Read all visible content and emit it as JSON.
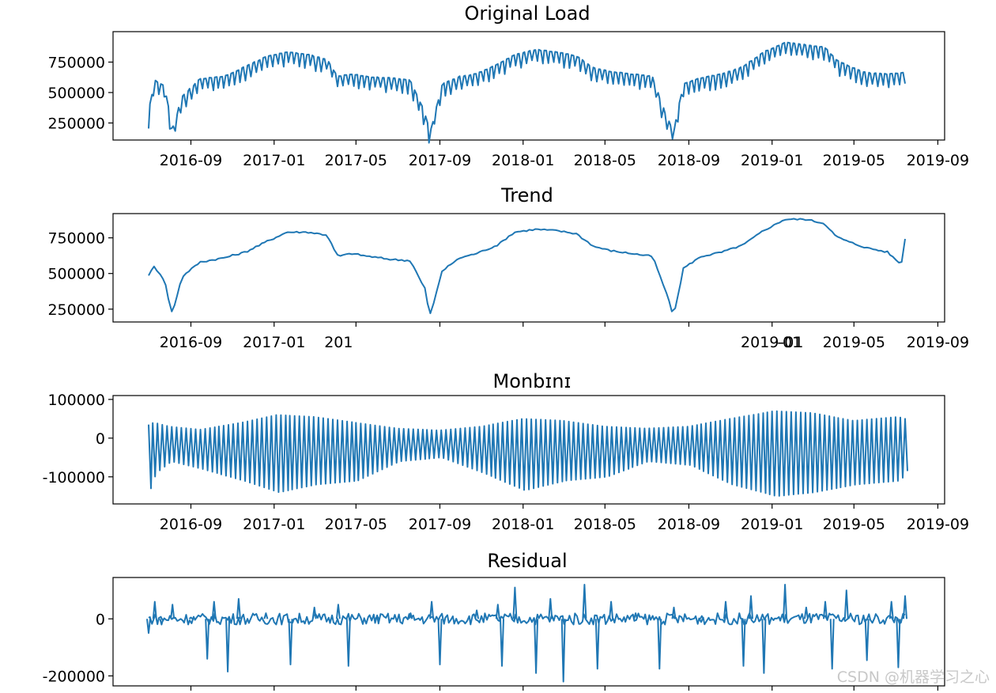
{
  "chart_data": [
    {
      "type": "line",
      "title": "Original Load",
      "x_ticks": [
        "2016-09",
        "2017-01",
        "2017-05",
        "2017-09",
        "2018-01",
        "2018-05",
        "2018-09",
        "2019-01",
        "2019-05",
        "2019-09"
      ],
      "y_ticks": [
        250000,
        500000,
        750000
      ],
      "ylim": [
        110000,
        1000000
      ],
      "x_range": [
        "2016-07-01",
        "2019-07-15"
      ],
      "series": [
        {
          "x": [
            "2016-07-01",
            "2016-07-10",
            "2016-07-25",
            "2016-08-05",
            "2016-08-20",
            "2016-09-15",
            "2016-10-20",
            "2016-11-20",
            "2016-12-20",
            "2017-01-20",
            "2017-02-20",
            "2017-03-20",
            "2017-04-05",
            "2017-04-25",
            "2017-05-20",
            "2017-06-20",
            "2017-07-20",
            "2017-08-10",
            "2017-08-18",
            "2017-09-05",
            "2017-10-01",
            "2017-10-25",
            "2017-11-25",
            "2017-12-20",
            "2018-01-20",
            "2018-02-20",
            "2018-03-20",
            "2018-04-15",
            "2018-05-10",
            "2018-06-10",
            "2018-07-10",
            "2018-07-28",
            "2018-08-10",
            "2018-08-25",
            "2018-09-20",
            "2018-10-20",
            "2018-11-20",
            "2018-12-20",
            "2019-01-20",
            "2019-02-20",
            "2019-03-20",
            "2019-04-05",
            "2019-04-25",
            "2019-05-20",
            "2019-06-20",
            "2019-07-10",
            "2019-07-15"
          ],
          "y": [
            310000,
            590000,
            540000,
            175000,
            460000,
            600000,
            620000,
            700000,
            780000,
            820000,
            800000,
            760000,
            620000,
            640000,
            615000,
            610000,
            590000,
            330000,
            155000,
            560000,
            620000,
            640000,
            720000,
            800000,
            840000,
            820000,
            790000,
            690000,
            660000,
            640000,
            620000,
            330000,
            170000,
            560000,
            610000,
            640000,
            700000,
            820000,
            900000,
            880000,
            860000,
            760000,
            700000,
            650000,
            640000,
            650000,
            660000
          ]
        }
      ]
    },
    {
      "type": "line",
      "title": "Trend",
      "x_ticks": [
        "2016-09",
        "2017-01",
        "",
        "",
        "",
        "",
        "",
        "2019-01",
        "2019-05",
        "2019-09"
      ],
      "x_tick_labels_visible": [
        "2016-09",
        "2017-01",
        "201",
        "-01",
        "2019-05",
        "2019-09"
      ],
      "y_ticks": [
        250000,
        500000,
        750000
      ],
      "ylim": [
        160000,
        920000
      ],
      "x_range": [
        "2016-07-01",
        "2019-07-15"
      ],
      "series": [
        {
          "x": [
            "2016-07-01",
            "2016-07-10",
            "2016-07-25",
            "2016-08-05",
            "2016-08-20",
            "2016-09-15",
            "2016-10-20",
            "2016-11-20",
            "2016-12-20",
            "2017-01-20",
            "2017-02-20",
            "2017-03-20",
            "2017-04-05",
            "2017-04-25",
            "2017-05-20",
            "2017-06-20",
            "2017-07-20",
            "2017-08-10",
            "2017-08-18",
            "2017-09-05",
            "2017-10-01",
            "2017-10-25",
            "2017-11-25",
            "2017-12-20",
            "2018-01-20",
            "2018-02-20",
            "2018-03-20",
            "2018-04-15",
            "2018-05-10",
            "2018-06-10",
            "2018-07-10",
            "2018-07-28",
            "2018-08-10",
            "2018-08-25",
            "2018-09-20",
            "2018-10-20",
            "2018-11-20",
            "2018-12-20",
            "2019-01-20",
            "2019-02-20",
            "2019-03-20",
            "2019-04-05",
            "2019-04-25",
            "2019-05-20",
            "2019-06-20",
            "2019-07-10",
            "2019-07-15"
          ],
          "y": [
            490000,
            550000,
            450000,
            215000,
            480000,
            580000,
            610000,
            650000,
            720000,
            790000,
            790000,
            770000,
            620000,
            640000,
            620000,
            600000,
            590000,
            400000,
            205000,
            520000,
            610000,
            640000,
            700000,
            790000,
            810000,
            800000,
            780000,
            690000,
            660000,
            640000,
            620000,
            400000,
            205000,
            540000,
            620000,
            650000,
            700000,
            800000,
            880000,
            880000,
            850000,
            760000,
            720000,
            680000,
            650000,
            560000,
            740000
          ]
        }
      ]
    },
    {
      "type": "line",
      "title": "Monbɪnɪ",
      "x_ticks": [
        "2016-09",
        "2017-01",
        "2017-05",
        "2017-09",
        "2018-01",
        "2018-05",
        "2018-09",
        "2019-01",
        "2019-05",
        "2019-09"
      ],
      "y_ticks": [
        -100000,
        0,
        100000
      ],
      "ylim": [
        -170000,
        110000
      ],
      "x_range": [
        "2016-07-01",
        "2019-07-15"
      ],
      "series": [
        {
          "x": [
            "2016-07-01",
            "2016-07-10",
            "2016-08-01",
            "2016-09-15",
            "2016-11-15",
            "2017-01-05",
            "2017-03-01",
            "2017-05-01",
            "2017-07-01",
            "2017-09-01",
            "2017-11-01",
            "2018-01-01",
            "2018-03-01",
            "2018-05-01",
            "2018-07-01",
            "2018-09-01",
            "2018-11-01",
            "2019-01-05",
            "2019-03-01",
            "2019-05-01",
            "2019-07-05",
            "2019-07-15"
          ],
          "y_upper": [
            35000,
            40000,
            30000,
            22000,
            40000,
            60000,
            55000,
            40000,
            25000,
            20000,
            30000,
            50000,
            45000,
            30000,
            25000,
            30000,
            50000,
            70000,
            65000,
            45000,
            55000,
            50000
          ],
          "y_lower": [
            -130000,
            -90000,
            -60000,
            -80000,
            -110000,
            -140000,
            -120000,
            -110000,
            -60000,
            -50000,
            -90000,
            -135000,
            -110000,
            -100000,
            -60000,
            -70000,
            -120000,
            -150000,
            -140000,
            -120000,
            -110000,
            -85000
          ]
        }
      ]
    },
    {
      "type": "line",
      "title": "Residual",
      "x_ticks": [],
      "y_ticks": [
        -200000,
        0
      ],
      "ylim": [
        -235000,
        145000
      ],
      "x_range": [
        "2016-07-01",
        "2019-07-15"
      ],
      "series": [
        {
          "x": [
            "2016-07-01",
            "2016-07-10",
            "2016-07-20",
            "2016-08-05",
            "2016-09-01",
            "2016-09-25",
            "2016-10-05",
            "2016-10-25",
            "2016-11-10",
            "2016-12-20",
            "2017-01-25",
            "2017-03-01",
            "2017-04-05",
            "2017-04-20",
            "2017-06-01",
            "2017-07-20",
            "2017-08-20",
            "2017-09-01",
            "2017-10-25",
            "2017-11-25",
            "2017-12-01",
            "2017-12-20",
            "2018-01-20",
            "2018-02-10",
            "2018-03-01",
            "2018-04-01",
            "2018-04-20",
            "2018-05-10",
            "2018-06-15",
            "2018-07-20",
            "2018-08-10",
            "2018-09-20",
            "2018-10-25",
            "2018-11-20",
            "2018-12-01",
            "2018-12-20",
            "2019-01-20",
            "2019-02-20",
            "2019-03-20",
            "2019-03-30",
            "2019-04-20",
            "2019-05-20",
            "2019-06-25",
            "2019-07-05",
            "2019-07-15"
          ],
          "y": [
            -50000,
            60000,
            -20000,
            50000,
            5000,
            -140000,
            60000,
            -185000,
            70000,
            20000,
            -160000,
            40000,
            50000,
            -165000,
            10000,
            20000,
            60000,
            -160000,
            30000,
            50000,
            -165000,
            110000,
            -190000,
            70000,
            -220000,
            120000,
            -175000,
            60000,
            20000,
            -175000,
            40000,
            10000,
            60000,
            -165000,
            80000,
            -190000,
            120000,
            40000,
            60000,
            -175000,
            100000,
            -145000,
            60000,
            -170000,
            80000
          ]
        }
      ]
    }
  ],
  "watermark": "CSDN @机器学习之心",
  "colors": {
    "series": "#1f77b4",
    "axes": "#000000",
    "background": "#ffffff"
  }
}
